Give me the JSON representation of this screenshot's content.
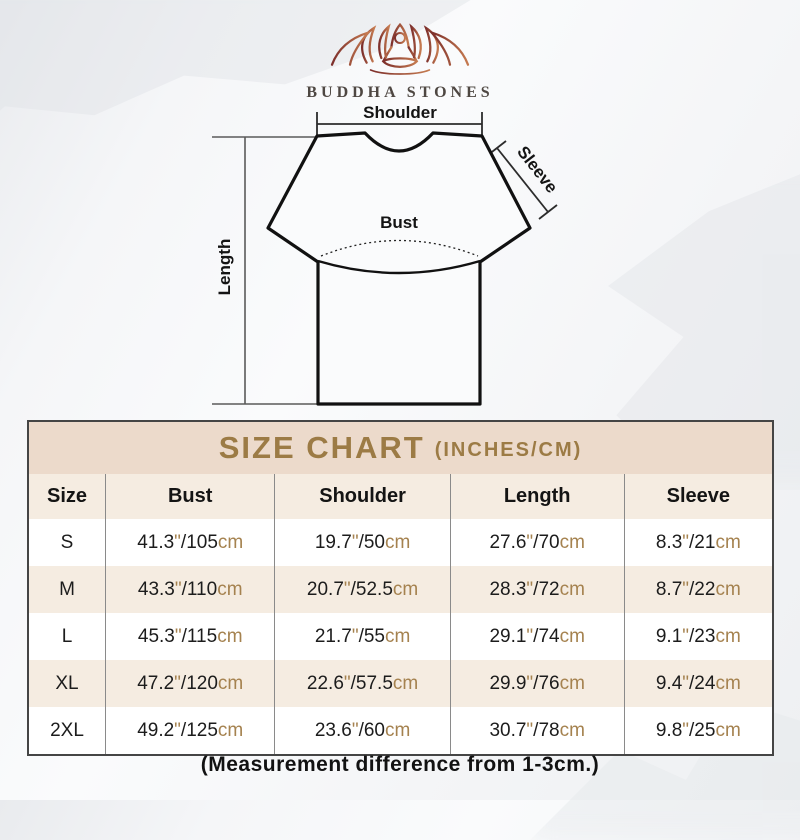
{
  "brand": {
    "name": "BUDDHA STONES",
    "logo_icon": "lotus-meditation-icon"
  },
  "diagram": {
    "labels": {
      "shoulder": "Shoulder",
      "sleeve": "Sleeve",
      "bust": "Bust",
      "length": "Length"
    }
  },
  "size_chart": {
    "title": "SIZE CHART",
    "title_suffix": "(INCHES/CM)",
    "columns": [
      "Size",
      "Bust",
      "Shoulder",
      "Length",
      "Sleeve"
    ],
    "units": {
      "inch_mark": "\"",
      "cm": "cm",
      "separator": "/"
    },
    "rows": [
      {
        "size": "S",
        "bust": {
          "in": "41.3",
          "cm": "105"
        },
        "shoulder": {
          "in": "19.7",
          "cm": "50"
        },
        "length": {
          "in": "27.6",
          "cm": "70"
        },
        "sleeve": {
          "in": "8.3",
          "cm": "21"
        }
      },
      {
        "size": "M",
        "bust": {
          "in": "43.3",
          "cm": "110"
        },
        "shoulder": {
          "in": "20.7",
          "cm": "52.5"
        },
        "length": {
          "in": "28.3",
          "cm": "72"
        },
        "sleeve": {
          "in": "8.7",
          "cm": "22"
        }
      },
      {
        "size": "L",
        "bust": {
          "in": "45.3",
          "cm": "115"
        },
        "shoulder": {
          "in": "21.7",
          "cm": "55"
        },
        "length": {
          "in": "29.1",
          "cm": "74"
        },
        "sleeve": {
          "in": "9.1",
          "cm": "23"
        }
      },
      {
        "size": "XL",
        "bust": {
          "in": "47.2",
          "cm": "120"
        },
        "shoulder": {
          "in": "22.6",
          "cm": "57.5"
        },
        "length": {
          "in": "29.9",
          "cm": "76"
        },
        "sleeve": {
          "in": "9.4",
          "cm": "24"
        }
      },
      {
        "size": "2XL",
        "bust": {
          "in": "49.2",
          "cm": "125"
        },
        "shoulder": {
          "in": "23.6",
          "cm": "60"
        },
        "length": {
          "in": "30.7",
          "cm": "78"
        },
        "sleeve": {
          "in": "9.8",
          "cm": "25"
        }
      }
    ]
  },
  "footer": {
    "note": "(Measurement difference from 1-3cm.)"
  },
  "colors": {
    "accent_gold": "#9c7b45",
    "accent_gold2": "#a5824f",
    "header_bg": "#ecdacb",
    "row_alt_bg": "#f5ece1",
    "divider": "#8a8a8a",
    "table_border": "#454545",
    "logo_dark": "#7d2f2b",
    "logo_light": "#c57a50"
  }
}
